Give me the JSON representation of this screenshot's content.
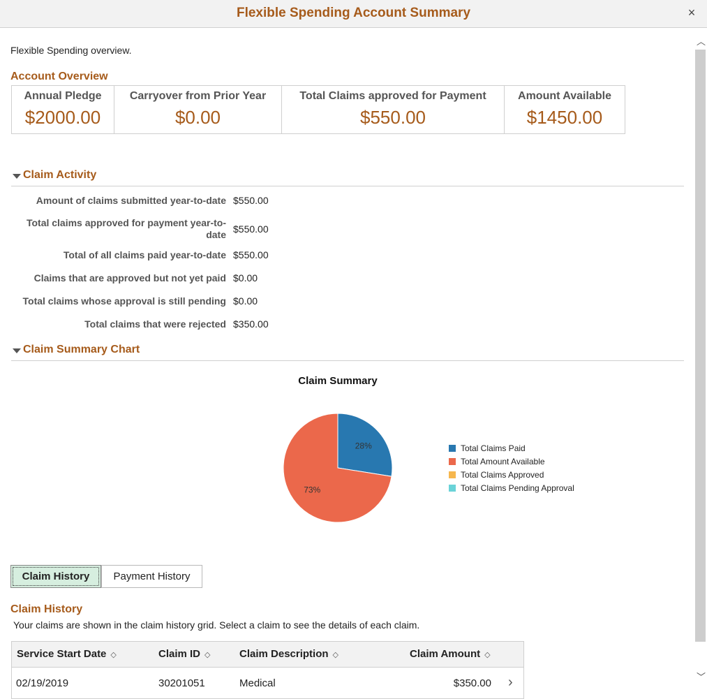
{
  "window": {
    "title": "Flexible Spending Account Summary",
    "close_glyph": "×"
  },
  "intro": "Flexible Spending overview.",
  "overview": {
    "heading": "Account Overview",
    "cells": [
      {
        "label": "Annual Pledge",
        "value": "$2000.00"
      },
      {
        "label": "Carryover from Prior Year",
        "value": "$0.00"
      },
      {
        "label": "Total Claims approved for Payment",
        "value": "$550.00"
      },
      {
        "label": "Amount Available",
        "value": "$1450.00"
      }
    ]
  },
  "claim_activity": {
    "heading": "Claim Activity",
    "rows": [
      {
        "label": "Amount of claims submitted year-to-date",
        "value": "$550.00"
      },
      {
        "label": "Total claims approved for payment year-to-date",
        "value": "$550.00"
      },
      {
        "label": "Total of all claims paid year-to-date",
        "value": "$550.00"
      },
      {
        "label": "Claims that are approved but not yet paid",
        "value": "$0.00"
      },
      {
        "label": "Total claims whose approval is still pending",
        "value": "$0.00"
      },
      {
        "label": "Total claims that were rejected",
        "value": "$350.00"
      }
    ]
  },
  "chart_section": {
    "heading": "Claim Summary Chart"
  },
  "chart_data": {
    "type": "pie",
    "title": "Claim Summary",
    "slices": [
      {
        "name": "Total Claims Paid",
        "value": 550,
        "label": "28%",
        "color": "#2878b0"
      },
      {
        "name": "Total Amount Available",
        "value": 1450,
        "label": "73%",
        "color": "#eb684b"
      },
      {
        "name": "Total Claims Approved",
        "value": 0,
        "label": "",
        "color": "#f6b74e"
      },
      {
        "name": "Total Claims Pending Approval",
        "value": 0,
        "label": "",
        "color": "#6ad3d8"
      }
    ],
    "legend_position": "right"
  },
  "tabs": [
    {
      "label": "Claim History",
      "active": true
    },
    {
      "label": "Payment History",
      "active": false
    }
  ],
  "claim_history": {
    "heading": "Claim History",
    "description": "Your claims are shown in the claim history grid. Select a claim to see the details of each claim.",
    "columns": [
      "Service Start Date",
      "Claim ID",
      "Claim Description",
      "Claim Amount"
    ],
    "sort_glyph": "◇",
    "rows": [
      {
        "date": "02/19/2019",
        "id": "30201051",
        "description": "Medical",
        "amount": "$350.00",
        "chevron": "›"
      }
    ]
  },
  "scrollbar": {
    "up": "︿",
    "down": "﹀"
  }
}
